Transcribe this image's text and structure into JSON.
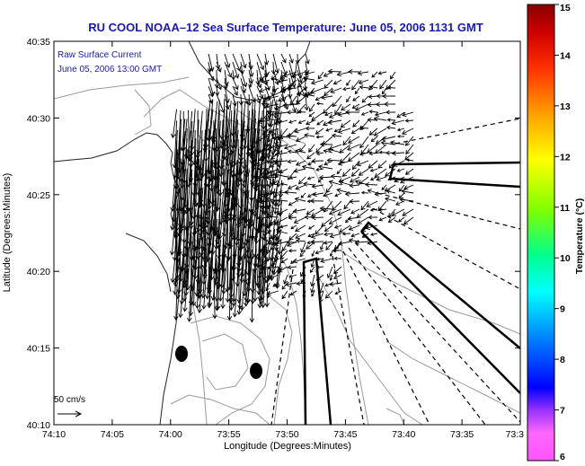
{
  "title": "RU COOL  NOAA–12  Sea Surface Temperature:  June 05, 2006 1131 GMT",
  "annotation": {
    "line1": "Raw Surface Current",
    "line2": "June 05, 2006 13:00 GMT"
  },
  "x_axis": {
    "label": "Longitude (Degrees:Minutes)",
    "ticks": [
      "74:10",
      "74:05",
      "74:00",
      "73:55",
      "73:50",
      "73:45",
      "73:40",
      "73:35",
      "73:3"
    ]
  },
  "y_axis": {
    "label": "Latitude (Degrees:Minutes)",
    "ticks": [
      "40:35",
      "40:30",
      "40:25",
      "40:20",
      "40:15",
      "40:10"
    ]
  },
  "colorbar": {
    "label": "Temperature (°C)",
    "ticks": [
      "15",
      "14",
      "13",
      "12",
      "11",
      "10",
      "9",
      "8",
      "7",
      "6"
    ],
    "range": [
      6,
      15
    ],
    "colors": [
      "#ff55ff",
      "#9933ff",
      "#0000ff",
      "#00a0ff",
      "#00ffff",
      "#00ff80",
      "#80ff00",
      "#ffff00",
      "#ffa000",
      "#ff4000",
      "#cc0000",
      "#8b0000"
    ]
  },
  "scale_arrow": {
    "label": "50 cm/s"
  },
  "colors": {
    "title": "#1a1aa8",
    "land": "#ffffff",
    "contour": "#999999",
    "vector": "#000000"
  }
}
